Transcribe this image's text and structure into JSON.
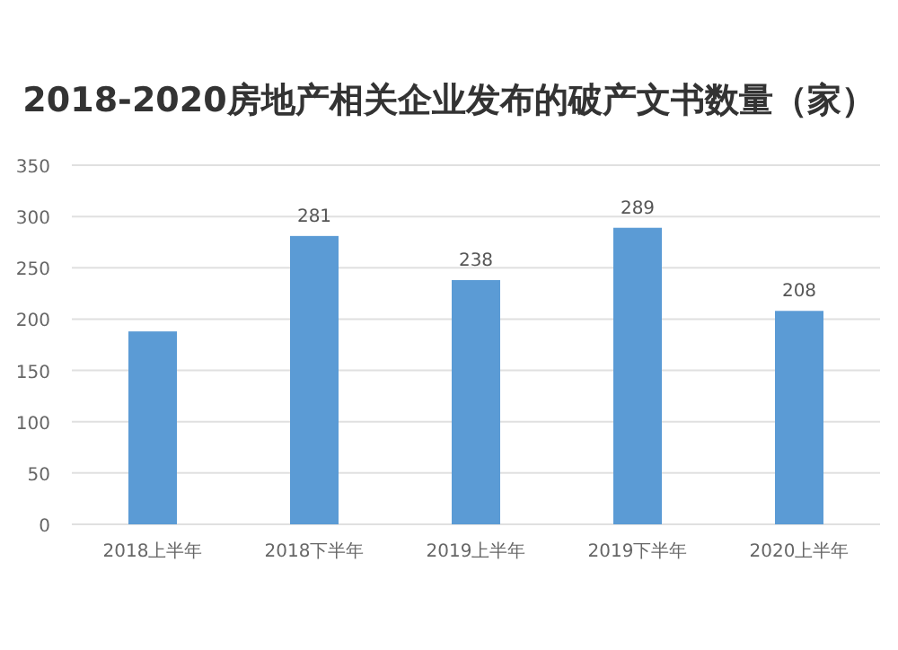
{
  "chart_data": {
    "type": "bar",
    "title": "2018-2020房地产相关企业发布的破产文书数量（家）",
    "categories": [
      "2018上半年",
      "2018下半年",
      "2019上半年",
      "2019下半年",
      "2020上半年"
    ],
    "values": [
      188,
      281,
      238,
      289,
      208
    ],
    "value_labels": [
      null,
      "281",
      "238",
      "289",
      "208"
    ],
    "color": "#5b9bd5",
    "ylim": [
      0,
      350
    ],
    "yticks": [
      0,
      50,
      100,
      150,
      200,
      250,
      300,
      350
    ],
    "grid": "y"
  }
}
